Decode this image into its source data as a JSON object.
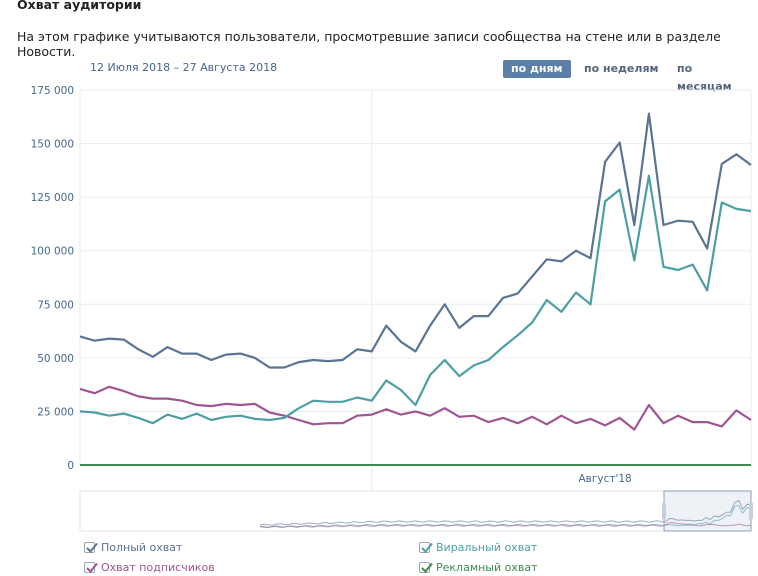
{
  "header": {
    "title": "Охват аудитории",
    "subtitle": "На этом графике учитываются пользователи, просмотревшие записи сообщества на стене или в разделе Новости.",
    "date_range": "12 Июля 2018 – 27 Августа 2018"
  },
  "period_buttons": {
    "days": "по дням",
    "weeks": "по неделям",
    "months": "по месяцам",
    "active": "days"
  },
  "legend": [
    {
      "label": "Полный охват",
      "color": "#5b7494",
      "checked": true
    },
    {
      "label": "Виральный охват",
      "color": "#4c9fa3",
      "checked": true
    },
    {
      "label": "Охват подписчиков",
      "color": "#a05592",
      "checked": true
    },
    {
      "label": "Рекламный охват",
      "color": "#3f8a4f",
      "checked": true
    }
  ],
  "chart_data": {
    "type": "line",
    "x_tick_labels": [
      "Август'18"
    ],
    "y_tick_labels": [
      "0",
      "25 000",
      "50 000",
      "75 000",
      "100 000",
      "125 000",
      "150 000",
      "175 000"
    ],
    "ylim": [
      0,
      175000
    ],
    "x_dates": [
      "2018-07-12",
      "2018-07-13",
      "2018-07-14",
      "2018-07-15",
      "2018-07-16",
      "2018-07-17",
      "2018-07-18",
      "2018-07-19",
      "2018-07-20",
      "2018-07-21",
      "2018-07-22",
      "2018-07-23",
      "2018-07-24",
      "2018-07-25",
      "2018-07-26",
      "2018-07-27",
      "2018-07-28",
      "2018-07-29",
      "2018-07-30",
      "2018-07-31",
      "2018-08-01",
      "2018-08-02",
      "2018-08-03",
      "2018-08-04",
      "2018-08-05",
      "2018-08-06",
      "2018-08-07",
      "2018-08-08",
      "2018-08-09",
      "2018-08-10",
      "2018-08-11",
      "2018-08-12",
      "2018-08-13",
      "2018-08-14",
      "2018-08-15",
      "2018-08-16",
      "2018-08-17",
      "2018-08-18",
      "2018-08-19",
      "2018-08-20",
      "2018-08-21",
      "2018-08-22",
      "2018-08-23",
      "2018-08-24",
      "2018-08-25",
      "2018-08-26",
      "2018-08-27"
    ],
    "series": [
      {
        "name": "Полный охват",
        "color": "#5b7494",
        "values": [
          60000,
          58000,
          59000,
          58500,
          54000,
          50500,
          55000,
          52000,
          52000,
          49000,
          51500,
          52000,
          50000,
          45500,
          45500,
          48000,
          49000,
          48500,
          49000,
          54000,
          53000,
          65000,
          57500,
          53000,
          65000,
          75000,
          64000,
          69500,
          69500,
          78000,
          80000,
          88000,
          96000,
          95000,
          100000,
          96500,
          141500,
          150500,
          112000,
          164000,
          112000,
          114000,
          113500,
          101000,
          140500,
          145000,
          140000
        ]
      },
      {
        "name": "Виральный охват",
        "color": "#4c9fa3",
        "values": [
          25000,
          24500,
          23000,
          24000,
          22000,
          19500,
          23500,
          21500,
          24000,
          21000,
          22500,
          23000,
          21500,
          21000,
          22000,
          26500,
          30000,
          29500,
          29500,
          31500,
          30000,
          39500,
          35000,
          28000,
          42000,
          49000,
          41500,
          46500,
          49000,
          55000,
          60500,
          66500,
          77000,
          71500,
          80500,
          75000,
          123000,
          128500,
          95500,
          135000,
          92500,
          91000,
          93500,
          81500,
          122500,
          119500,
          118500
        ]
      },
      {
        "name": "Охват подписчиков",
        "color": "#a05592",
        "values": [
          35500,
          33500,
          36500,
          34500,
          32000,
          31000,
          31000,
          30000,
          28000,
          27500,
          28500,
          28000,
          28500,
          24500,
          23000,
          21000,
          19000,
          19500,
          19500,
          23000,
          23500,
          26000,
          23500,
          25000,
          23000,
          26500,
          22500,
          23000,
          20000,
          22000,
          19500,
          22500,
          19000,
          23000,
          19500,
          21500,
          18500,
          22000,
          16500,
          28000,
          19500,
          23000,
          20000,
          20000,
          18000,
          25500,
          21000
        ]
      },
      {
        "name": "Рекламный охват",
        "color": "#3f8a4f",
        "values": [
          0,
          0,
          0,
          0,
          0,
          0,
          0,
          0,
          0,
          0,
          0,
          0,
          0,
          0,
          0,
          0,
          0,
          0,
          0,
          0,
          0,
          0,
          0,
          0,
          0,
          0,
          0,
          0,
          0,
          0,
          0,
          0,
          0,
          0,
          0,
          0,
          0,
          0,
          0,
          0,
          0,
          0,
          0,
          0,
          0,
          0,
          0
        ]
      }
    ],
    "grid": true,
    "legend_position": "bottom-left"
  }
}
